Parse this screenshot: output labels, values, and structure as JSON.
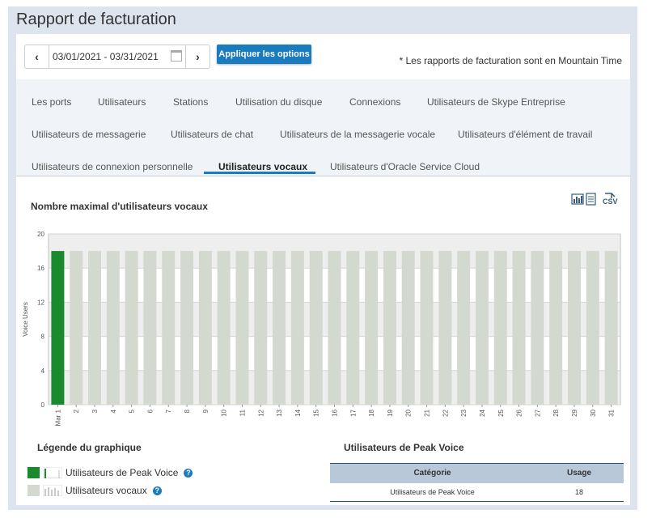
{
  "page": {
    "title": "Rapport de facturation"
  },
  "toolbar": {
    "date_range": "03/01/2021 - 03/31/2021",
    "apply_label": "Appliquer les options",
    "timezone_note": "* Les rapports de facturation sont en Mountain Time"
  },
  "tabs": [
    "Les ports",
    "Utilisateurs",
    "Stations",
    "Utilisation du disque",
    "Connexions",
    "Utilisateurs de Skype Entreprise",
    "Utilisateurs de messagerie",
    "Utilisateurs de chat",
    "Utilisateurs de la messagerie vocale",
    "Utilisateurs d'élément de travail",
    "Utilisateurs de connexion personnelle",
    "Utilisateurs vocaux",
    "Utilisateurs d'Oracle Service Cloud"
  ],
  "active_tab": "Utilisateurs vocaux",
  "chart_section": {
    "title": "Nombre maximal d'utilisateurs vocaux",
    "csv_label": "CSV"
  },
  "colors": {
    "peak": "#1a8a2e",
    "normal": "#d4d9cf",
    "accent": "#1a7bbf"
  },
  "chart_data": {
    "type": "bar",
    "ylabel": "Voice Users",
    "ylim": [
      0,
      20
    ],
    "yticks": [
      0,
      4,
      8,
      12,
      16,
      20
    ],
    "categories": [
      "Mar 1",
      "2",
      "3",
      "4",
      "5",
      "6",
      "7",
      "8",
      "9",
      "10",
      "11",
      "12",
      "13",
      "14",
      "15",
      "16",
      "17",
      "18",
      "19",
      "20",
      "21",
      "22",
      "23",
      "24",
      "25",
      "26",
      "27",
      "28",
      "29",
      "30",
      "31"
    ],
    "series": [
      {
        "name": "Utilisateurs vocaux",
        "values": [
          18,
          18,
          18,
          18,
          18,
          18,
          18,
          18,
          18,
          18,
          18,
          18,
          18,
          18,
          18,
          18,
          18,
          18,
          18,
          18,
          18,
          18,
          18,
          18,
          18,
          18,
          18,
          18,
          18,
          18,
          18
        ]
      }
    ],
    "peak_index": 0
  },
  "legend": {
    "title": "Légende du graphique",
    "items": [
      {
        "label": "Utilisateurs de Peak Voice",
        "help": "?"
      },
      {
        "label": "Utilisateurs vocaux",
        "help": "?"
      }
    ]
  },
  "peak_table": {
    "title": "Utilisateurs de Peak Voice",
    "headers": [
      "Catégorie",
      "Usage"
    ],
    "rows": [
      [
        "Utilisateurs de Peak Voice",
        "18"
      ]
    ]
  }
}
